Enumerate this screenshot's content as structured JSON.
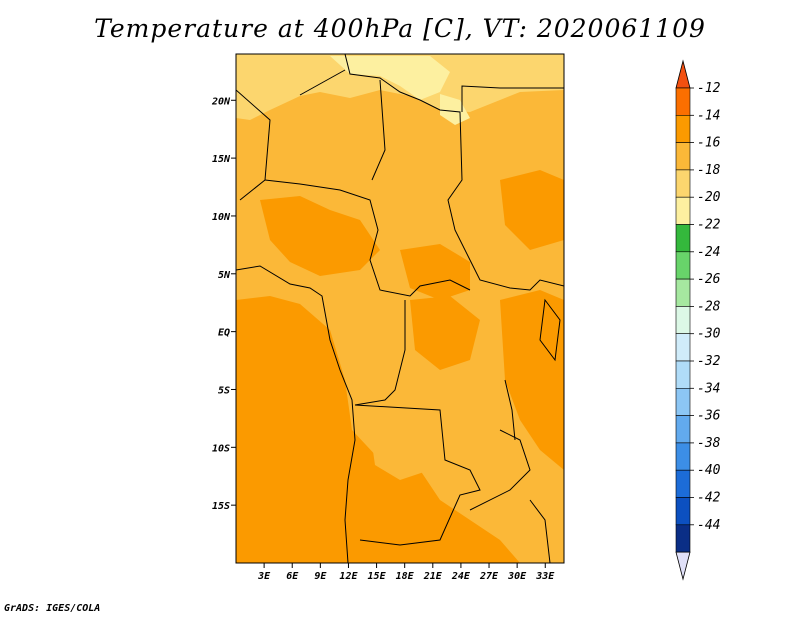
{
  "title": "Temperature at 400hPa [C], VT: 2020061109",
  "credit": "GrADS: IGES/COLA",
  "map": {
    "lon_range": [
      0,
      35
    ],
    "lat_range": [
      -20,
      24
    ],
    "lat_ticks": [
      {
        "value": 20,
        "label": "20N"
      },
      {
        "value": 15,
        "label": "15N"
      },
      {
        "value": 10,
        "label": "10N"
      },
      {
        "value": 5,
        "label": "5N"
      },
      {
        "value": 0,
        "label": "EQ"
      },
      {
        "value": -5,
        "label": "5S"
      },
      {
        "value": -10,
        "label": "10S"
      },
      {
        "value": -15,
        "label": "15S"
      }
    ],
    "lon_ticks": [
      {
        "value": 3,
        "label": "3E"
      },
      {
        "value": 6,
        "label": "6E"
      },
      {
        "value": 9,
        "label": "9E"
      },
      {
        "value": 12,
        "label": "12E"
      },
      {
        "value": 15,
        "label": "15E"
      },
      {
        "value": 18,
        "label": "18E"
      },
      {
        "value": 21,
        "label": "21E"
      },
      {
        "value": 24,
        "label": "24E"
      },
      {
        "value": 27,
        "label": "27E"
      },
      {
        "value": 30,
        "label": "30E"
      },
      {
        "value": 33,
        "label": "33E"
      }
    ],
    "base_fill_color": "#fbb838"
  },
  "colorbar": {
    "top_arrow_color": "#f35010",
    "bottom_arrow_color": "#e0e0f8",
    "bands": [
      {
        "color": "#fb6f00"
      },
      {
        "color": "#fb9a00"
      },
      {
        "color": "#fbb838"
      },
      {
        "color": "#fcd66e"
      },
      {
        "color": "#fdf0a0"
      },
      {
        "color": "#34b83c"
      },
      {
        "color": "#68d46a"
      },
      {
        "color": "#a6e8a0"
      },
      {
        "color": "#dcf8e6"
      },
      {
        "color": "#d0ecfa"
      },
      {
        "color": "#b0dcf8"
      },
      {
        "color": "#8cc6f4"
      },
      {
        "color": "#62aaee"
      },
      {
        "color": "#3c8ee6"
      },
      {
        "color": "#1c6cd8"
      },
      {
        "color": "#0c50c0"
      },
      {
        "color": "#0a2e86"
      }
    ],
    "labels": [
      "-12",
      "-14",
      "-16",
      "-18",
      "-20",
      "-22",
      "-24",
      "-26",
      "-28",
      "-30",
      "-32",
      "-34",
      "-36",
      "-38",
      "-40",
      "-42",
      "-44"
    ]
  }
}
